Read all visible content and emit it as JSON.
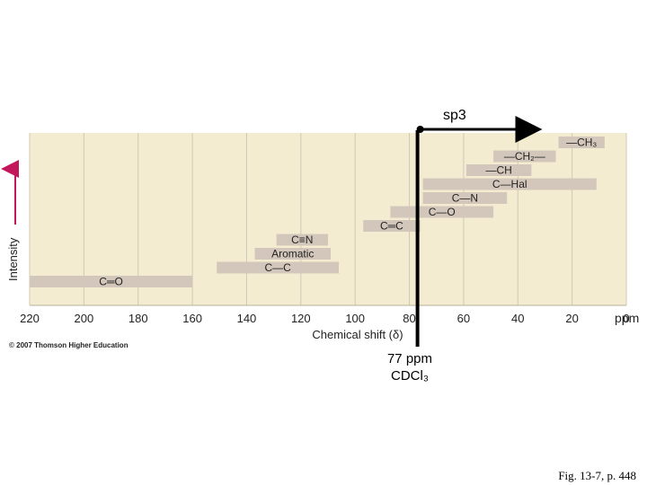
{
  "chart_data": {
    "type": "bar",
    "orientation": "horizontal-ranges",
    "xlabel": "Chemical shift (δ)",
    "ylabel": "Intensity",
    "x_unit": "ppm",
    "xlim": [
      220,
      0
    ],
    "x_reversed": true,
    "xticks": [
      220,
      200,
      180,
      160,
      140,
      120,
      100,
      80,
      60,
      40,
      20,
      0
    ],
    "grid": true,
    "bands": [
      {
        "label": "—CH₃",
        "start": 25,
        "end": 8,
        "label_side": "inside"
      },
      {
        "label": "—CH₂—",
        "start": 49,
        "end": 26,
        "label_side": "inside"
      },
      {
        "label": "—CH",
        "start": 59,
        "end": 35,
        "label_side": "inside"
      },
      {
        "label": "C—Hal",
        "start": 75,
        "end": 11,
        "label_side": "inside"
      },
      {
        "label": "C—N",
        "start": 75,
        "end": 44,
        "label_side": "inside"
      },
      {
        "label": "C—O",
        "start": 87,
        "end": 49,
        "label_side": "inside"
      },
      {
        "label": "C═C",
        "start": 97,
        "end": 76,
        "label_side": "inside"
      },
      {
        "label": "C≡N",
        "start": 129,
        "end": 110,
        "label_side": "inside"
      },
      {
        "label": "Aromatic",
        "start": 137,
        "end": 109,
        "label_side": "inside"
      },
      {
        "label": "C—C",
        "start": 151,
        "end": 106,
        "label_side": "inside"
      },
      {
        "label": "C═O",
        "start": 220,
        "end": 160,
        "label_side": "inside"
      }
    ],
    "reference_line": {
      "x": 77,
      "label_line1": "77 ppm",
      "label_line2": "CDCl₃"
    },
    "range_arrow": {
      "label": "sp3",
      "from": 76,
      "to": 33
    }
  },
  "annotations": {
    "copyright": "© 2007 Thomson Higher Education",
    "figure_ref": "Fig. 13-7, p. 448"
  },
  "colors": {
    "plot_bg": "#f4ecd0",
    "band_fill": "#d3c7bb",
    "grid": "#cfc9b8",
    "axis_arrow": "#c2185b",
    "text": "#222222"
  }
}
